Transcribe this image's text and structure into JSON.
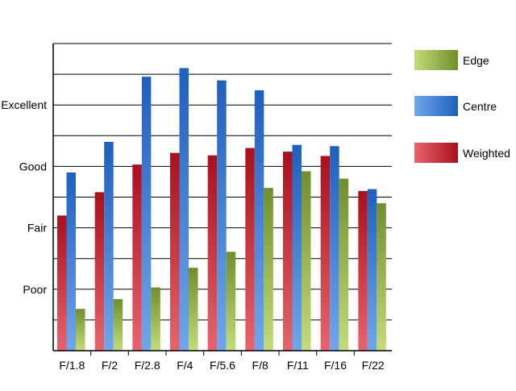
{
  "chart_data": {
    "type": "bar",
    "categories": [
      "F/1.8",
      "F/2",
      "F/2.8",
      "F/4",
      "F/5.6",
      "F/8",
      "F/11",
      "F/16",
      "F/22"
    ],
    "series": [
      {
        "name": "Weighted",
        "values": [
          2.2,
          2.58,
          3.03,
          3.22,
          3.18,
          3.3,
          3.24,
          3.17,
          2.6
        ]
      },
      {
        "name": "Centre",
        "values": [
          2.9,
          3.4,
          4.46,
          4.6,
          4.4,
          4.24,
          3.35,
          3.33,
          2.63
        ]
      },
      {
        "name": "Edge",
        "values": [
          0.68,
          0.84,
          1.03,
          1.35,
          1.61,
          2.65,
          2.92,
          2.8,
          2.4
        ]
      }
    ],
    "series_colors": {
      "Weighted": {
        "light": "#e8646c",
        "dark": "#a8101c"
      },
      "Centre": {
        "light": "#6fa6ec",
        "dark": "#1f5fbe"
      },
      "Edge": {
        "light": "#c3dc78",
        "dark": "#6f8f2c"
      }
    },
    "y_tick_labels": [
      {
        "value": 1,
        "label": "Poor"
      },
      {
        "value": 2,
        "label": "Fair"
      },
      {
        "value": 3,
        "label": "Good"
      },
      {
        "value": 4,
        "label": "Excellent"
      }
    ],
    "ylim": [
      0,
      5
    ],
    "gridline_step": 0.5,
    "grid": true,
    "legend_order": [
      "Edge",
      "Centre",
      "Weighted"
    ],
    "legend_position": "right",
    "title": "",
    "xlabel": "",
    "ylabel": ""
  }
}
